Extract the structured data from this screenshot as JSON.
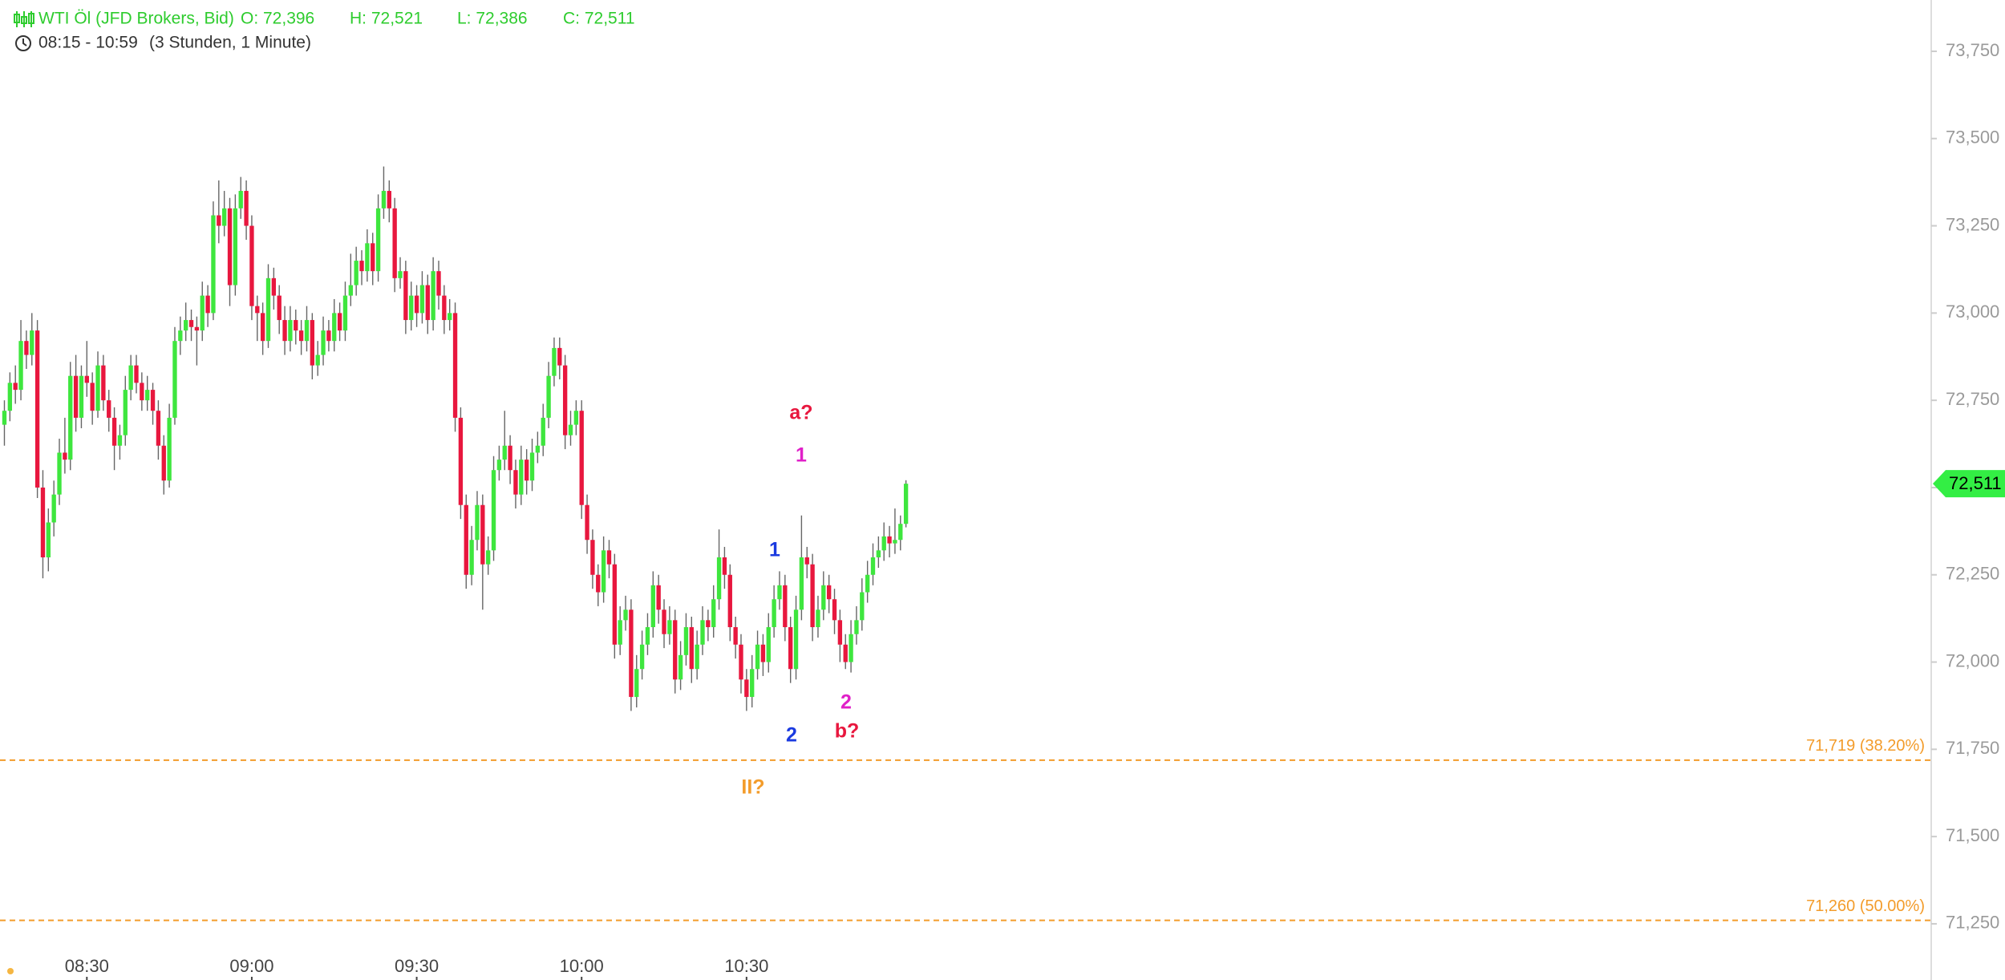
{
  "header": {
    "instrument": "WTI Öl (JFD Brokers, Bid)",
    "ohlc": [
      "O: 72,396",
      "H: 72,521",
      "L: 72,386",
      "C: 72,511"
    ],
    "range": "08:15 - 10:59",
    "duration": "(3 Stunden, 1 Minute)",
    "color": "#2ecc2e"
  },
  "chart_data": {
    "type": "candlestick",
    "up_color": "#3ee63e",
    "down_color": "#e8173e",
    "wick_color": "#666666",
    "candles": [
      [
        72.68,
        72.75,
        72.62,
        72.72
      ],
      [
        72.72,
        72.83,
        72.69,
        72.8
      ],
      [
        72.8,
        72.85,
        72.74,
        72.78
      ],
      [
        72.78,
        72.98,
        72.75,
        72.92
      ],
      [
        72.92,
        72.95,
        72.84,
        72.88
      ],
      [
        72.88,
        73.0,
        72.85,
        72.95
      ],
      [
        72.95,
        72.98,
        72.47,
        72.5
      ],
      [
        72.5,
        72.55,
        72.24,
        72.3
      ],
      [
        72.3,
        72.44,
        72.26,
        72.4
      ],
      [
        72.4,
        72.52,
        72.36,
        72.48
      ],
      [
        72.48,
        72.64,
        72.45,
        72.6
      ],
      [
        72.6,
        72.7,
        72.54,
        72.58
      ],
      [
        72.58,
        72.86,
        72.55,
        72.82
      ],
      [
        72.82,
        72.88,
        72.66,
        72.7
      ],
      [
        72.7,
        72.85,
        72.67,
        72.82
      ],
      [
        72.82,
        72.92,
        72.76,
        72.8
      ],
      [
        72.8,
        72.83,
        72.68,
        72.72
      ],
      [
        72.72,
        72.89,
        72.7,
        72.85
      ],
      [
        72.85,
        72.88,
        72.72,
        72.75
      ],
      [
        72.75,
        72.78,
        72.66,
        72.7
      ],
      [
        72.7,
        72.73,
        72.55,
        72.62
      ],
      [
        72.62,
        72.68,
        72.58,
        72.65
      ],
      [
        72.65,
        72.82,
        72.62,
        72.78
      ],
      [
        72.78,
        72.88,
        72.75,
        72.85
      ],
      [
        72.85,
        72.88,
        72.77,
        72.8
      ],
      [
        72.8,
        72.83,
        72.72,
        72.75
      ],
      [
        72.75,
        72.82,
        72.72,
        72.78
      ],
      [
        72.78,
        72.8,
        72.68,
        72.72
      ],
      [
        72.72,
        72.75,
        72.58,
        72.62
      ],
      [
        72.62,
        72.65,
        72.48,
        72.52
      ],
      [
        72.52,
        72.74,
        72.5,
        72.7
      ],
      [
        72.7,
        72.96,
        72.68,
        72.92
      ],
      [
        72.92,
        72.99,
        72.88,
        72.95
      ],
      [
        72.95,
        73.03,
        72.92,
        72.98
      ],
      [
        72.98,
        73.01,
        72.92,
        72.96
      ],
      [
        72.96,
        72.99,
        72.85,
        72.95
      ],
      [
        72.95,
        73.09,
        72.92,
        73.05
      ],
      [
        73.05,
        73.08,
        72.96,
        73.0
      ],
      [
        73.0,
        73.32,
        72.98,
        73.28
      ],
      [
        73.28,
        73.38,
        73.2,
        73.25
      ],
      [
        73.25,
        73.35,
        73.22,
        73.3
      ],
      [
        73.3,
        73.33,
        73.02,
        73.08
      ],
      [
        73.08,
        73.34,
        73.05,
        73.3
      ],
      [
        73.3,
        73.39,
        73.27,
        73.35
      ],
      [
        73.35,
        73.38,
        73.21,
        73.25
      ],
      [
        73.25,
        73.28,
        72.98,
        73.02
      ],
      [
        73.02,
        73.05,
        72.92,
        73.0
      ],
      [
        73.0,
        73.03,
        72.88,
        72.92
      ],
      [
        72.92,
        73.14,
        72.9,
        73.1
      ],
      [
        73.1,
        73.13,
        73.01,
        73.05
      ],
      [
        73.05,
        73.08,
        72.94,
        72.98
      ],
      [
        72.98,
        73.02,
        72.88,
        72.92
      ],
      [
        72.92,
        73.02,
        72.89,
        72.98
      ],
      [
        72.98,
        73.01,
        72.91,
        72.95
      ],
      [
        72.95,
        72.98,
        72.88,
        72.92
      ],
      [
        72.92,
        73.02,
        72.89,
        72.98
      ],
      [
        72.98,
        73.0,
        72.81,
        72.85
      ],
      [
        72.85,
        72.92,
        72.82,
        72.88
      ],
      [
        72.88,
        72.99,
        72.85,
        72.95
      ],
      [
        72.95,
        72.98,
        72.89,
        72.92
      ],
      [
        72.92,
        73.04,
        72.89,
        73.0
      ],
      [
        73.0,
        73.03,
        72.92,
        72.95
      ],
      [
        72.95,
        73.09,
        72.92,
        73.05
      ],
      [
        73.05,
        73.17,
        73.02,
        73.08
      ],
      [
        73.08,
        73.19,
        73.05,
        73.15
      ],
      [
        73.15,
        73.18,
        73.08,
        73.12
      ],
      [
        73.12,
        73.24,
        73.09,
        73.2
      ],
      [
        73.2,
        73.23,
        73.08,
        73.12
      ],
      [
        73.12,
        73.34,
        73.09,
        73.3
      ],
      [
        73.3,
        73.42,
        73.27,
        73.35
      ],
      [
        73.35,
        73.38,
        73.26,
        73.3
      ],
      [
        73.3,
        73.33,
        73.06,
        73.1
      ],
      [
        73.1,
        73.16,
        73.07,
        73.12
      ],
      [
        73.12,
        73.15,
        72.94,
        72.98
      ],
      [
        72.98,
        73.09,
        72.95,
        73.05
      ],
      [
        73.05,
        73.08,
        72.96,
        73.0
      ],
      [
        73.0,
        73.12,
        72.97,
        73.08
      ],
      [
        73.08,
        73.11,
        72.94,
        72.98
      ],
      [
        72.98,
        73.16,
        72.95,
        73.12
      ],
      [
        73.12,
        73.15,
        73.01,
        73.05
      ],
      [
        73.05,
        73.08,
        72.94,
        72.98
      ],
      [
        72.98,
        73.04,
        72.95,
        73.0
      ],
      [
        73.0,
        73.03,
        72.66,
        72.7
      ],
      [
        72.7,
        72.73,
        72.41,
        72.45
      ],
      [
        72.45,
        72.48,
        72.21,
        72.25
      ],
      [
        72.25,
        72.39,
        72.22,
        72.35
      ],
      [
        72.35,
        72.49,
        72.32,
        72.45
      ],
      [
        72.45,
        72.48,
        72.15,
        72.28
      ],
      [
        72.28,
        72.36,
        72.25,
        72.32
      ],
      [
        72.32,
        72.59,
        72.29,
        72.55
      ],
      [
        72.55,
        72.62,
        72.52,
        72.58
      ],
      [
        72.58,
        72.72,
        72.55,
        72.62
      ],
      [
        72.62,
        72.65,
        72.51,
        72.55
      ],
      [
        72.55,
        72.58,
        72.44,
        72.48
      ],
      [
        72.48,
        72.62,
        72.45,
        72.58
      ],
      [
        72.58,
        72.61,
        72.48,
        72.52
      ],
      [
        72.52,
        72.64,
        72.49,
        72.6
      ],
      [
        72.6,
        72.66,
        72.57,
        72.62
      ],
      [
        72.62,
        72.74,
        72.59,
        72.7
      ],
      [
        72.7,
        72.86,
        72.67,
        72.82
      ],
      [
        72.82,
        72.93,
        72.79,
        72.9
      ],
      [
        72.9,
        72.93,
        72.81,
        72.85
      ],
      [
        72.85,
        72.88,
        72.61,
        72.65
      ],
      [
        72.65,
        72.72,
        72.62,
        72.68
      ],
      [
        72.68,
        72.75,
        72.65,
        72.72
      ],
      [
        72.72,
        72.75,
        72.41,
        72.45
      ],
      [
        72.45,
        72.48,
        72.31,
        72.35
      ],
      [
        72.35,
        72.38,
        72.21,
        72.25
      ],
      [
        72.25,
        72.28,
        72.16,
        72.2
      ],
      [
        72.2,
        72.36,
        72.17,
        72.32
      ],
      [
        72.32,
        72.35,
        72.24,
        72.28
      ],
      [
        72.28,
        72.31,
        72.01,
        72.05
      ],
      [
        72.05,
        72.16,
        72.02,
        72.12
      ],
      [
        72.12,
        72.19,
        72.09,
        72.15
      ],
      [
        72.15,
        72.18,
        71.86,
        71.9
      ],
      [
        71.9,
        72.02,
        71.87,
        71.98
      ],
      [
        71.98,
        72.09,
        71.95,
        72.05
      ],
      [
        72.05,
        72.14,
        72.02,
        72.1
      ],
      [
        72.1,
        72.26,
        72.07,
        72.22
      ],
      [
        72.22,
        72.25,
        72.11,
        72.15
      ],
      [
        72.15,
        72.18,
        72.04,
        72.08
      ],
      [
        72.08,
        72.16,
        72.05,
        72.12
      ],
      [
        72.12,
        72.15,
        71.91,
        71.95
      ],
      [
        71.95,
        72.06,
        71.92,
        72.02
      ],
      [
        72.02,
        72.14,
        71.99,
        72.1
      ],
      [
        72.1,
        72.13,
        71.94,
        71.98
      ],
      [
        71.98,
        72.09,
        71.95,
        72.05
      ],
      [
        72.05,
        72.16,
        72.02,
        72.12
      ],
      [
        72.12,
        72.15,
        72.06,
        72.1
      ],
      [
        72.1,
        72.22,
        72.07,
        72.18
      ],
      [
        72.18,
        72.38,
        72.15,
        72.3
      ],
      [
        72.3,
        72.33,
        72.21,
        72.25
      ],
      [
        72.25,
        72.28,
        72.06,
        72.1
      ],
      [
        72.1,
        72.13,
        72.01,
        72.05
      ],
      [
        72.05,
        72.08,
        71.91,
        71.95
      ],
      [
        71.95,
        71.98,
        71.86,
        71.9
      ],
      [
        71.9,
        72.02,
        71.87,
        71.98
      ],
      [
        71.98,
        72.09,
        71.95,
        72.05
      ],
      [
        72.05,
        72.08,
        71.96,
        72.0
      ],
      [
        72.0,
        72.14,
        71.97,
        72.1
      ],
      [
        72.1,
        72.22,
        72.07,
        72.18
      ],
      [
        72.18,
        72.26,
        72.15,
        72.22
      ],
      [
        72.22,
        72.25,
        72.06,
        72.1
      ],
      [
        72.1,
        72.13,
        71.94,
        71.98
      ],
      [
        71.98,
        72.19,
        71.95,
        72.15
      ],
      [
        72.15,
        72.42,
        72.12,
        72.3
      ],
      [
        72.3,
        72.33,
        72.24,
        72.28
      ],
      [
        72.28,
        72.31,
        72.06,
        72.1
      ],
      [
        72.1,
        72.19,
        72.07,
        72.15
      ],
      [
        72.15,
        72.26,
        72.12,
        72.22
      ],
      [
        72.22,
        72.25,
        72.14,
        72.18
      ],
      [
        72.18,
        72.21,
        72.08,
        72.12
      ],
      [
        72.12,
        72.15,
        72.0,
        72.05
      ],
      [
        72.05,
        72.08,
        71.98,
        72.0
      ],
      [
        72.0,
        72.12,
        71.97,
        72.08
      ],
      [
        72.08,
        72.16,
        72.05,
        72.12
      ],
      [
        72.12,
        72.24,
        72.09,
        72.2
      ],
      [
        72.2,
        72.29,
        72.17,
        72.25
      ],
      [
        72.25,
        72.34,
        72.22,
        72.3
      ],
      [
        72.3,
        72.36,
        72.27,
        72.32
      ],
      [
        72.32,
        72.4,
        72.29,
        72.36
      ],
      [
        72.36,
        72.39,
        72.3,
        72.34
      ],
      [
        72.34,
        72.44,
        72.31,
        72.35
      ],
      [
        72.35,
        72.42,
        72.32,
        72.396
      ],
      [
        72.396,
        72.521,
        72.386,
        72.511
      ]
    ],
    "xlim": [
      -0.8,
      350.5
    ],
    "xticks": [
      {
        "value": 15,
        "label": "08:30"
      },
      {
        "value": 45,
        "label": "09:00"
      },
      {
        "value": 75,
        "label": "09:30"
      },
      {
        "value": 105,
        "label": "10:00"
      },
      {
        "value": 135,
        "label": "10:30"
      }
    ],
    "ylim": [
      71.089,
      73.897
    ],
    "yticks": [
      {
        "value": 73.75,
        "label": "73,750"
      },
      {
        "value": 73.5,
        "label": "73,500"
      },
      {
        "value": 73.25,
        "label": "73,250"
      },
      {
        "value": 73,
        "label": "73,000"
      },
      {
        "value": 72.75,
        "label": "72,750"
      },
      {
        "value": 72.5,
        "label": "72,500"
      },
      {
        "value": 72.25,
        "label": "72,250"
      },
      {
        "value": 72,
        "label": "72,000"
      },
      {
        "value": 71.75,
        "label": "71,750"
      },
      {
        "value": 71.5,
        "label": "71,500"
      },
      {
        "value": 71.25,
        "label": "71,250"
      }
    ],
    "reference_lines": [
      {
        "value": 71.719,
        "label": "71,719 (38.20%)"
      },
      {
        "value": 71.26,
        "label": "71,260 (50.00%)"
      }
    ],
    "reference_color": "#f39c2b",
    "last_price": {
      "value": 72.511,
      "label": "72,511"
    },
    "last_price_color": "#33ee44",
    "annotations": [
      {
        "text": "a?",
        "color": "#e8173e"
      },
      {
        "text": "1",
        "color": "#e020c8"
      },
      {
        "text": "1",
        "color": "#1a3ae0"
      },
      {
        "text": "2",
        "color": "#1a3ae0"
      },
      {
        "text": "2",
        "color": "#e020c8"
      },
      {
        "text": "b?",
        "color": "#e8173e"
      },
      {
        "text": "II?",
        "color": "#f39c2b"
      }
    ]
  }
}
